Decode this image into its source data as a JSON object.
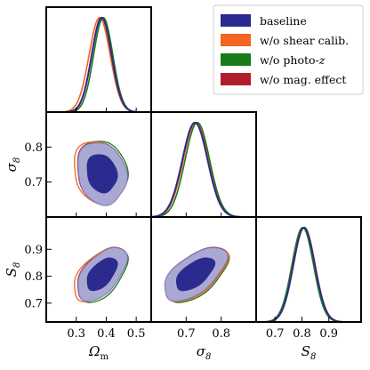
{
  "chart_data": {
    "type": "corner",
    "parameters": [
      {
        "key": "Om",
        "label": "Ωm",
        "range": [
          0.2,
          0.55
        ],
        "ticks": [
          0.3,
          0.4,
          0.5
        ],
        "tick_labels": [
          "0.3",
          "0.4",
          "0.5"
        ]
      },
      {
        "key": "sigma8",
        "label": "σ8",
        "range": [
          0.6,
          0.9
        ],
        "ticks": [
          0.7,
          0.8
        ],
        "tick_labels": [
          "0.7",
          "0.8"
        ]
      },
      {
        "key": "S8",
        "label": "S8",
        "range": [
          0.63,
          1.02
        ],
        "ticks": [
          0.7,
          0.8,
          0.9
        ],
        "tick_labels": [
          "0.7",
          "0.8",
          "0.9"
        ]
      }
    ],
    "series": [
      {
        "name": "baseline",
        "color": "#2b2b8f",
        "means": {
          "Om": 0.385,
          "sigma8": 0.725,
          "S8": 0.808
        },
        "sds": {
          "Om": 0.033,
          "sigma8": 0.036,
          "S8": 0.04
        },
        "corr": {
          "sigma8_Om": -0.15,
          "S8_Om": 0.55,
          "S8_sigma8": 0.6
        }
      },
      {
        "name": "w/o shear calib.",
        "color": "#f26522",
        "means": {
          "Om": 0.378,
          "sigma8": 0.728,
          "S8": 0.806
        },
        "sds": {
          "Om": 0.035,
          "sigma8": 0.036,
          "S8": 0.04
        },
        "corr": {
          "sigma8_Om": -0.15,
          "S8_Om": 0.55,
          "S8_sigma8": 0.6
        }
      },
      {
        "name": "w/o photo-z",
        "color": "#1a7a1a",
        "means": {
          "Om": 0.39,
          "sigma8": 0.732,
          "S8": 0.803
        },
        "sds": {
          "Om": 0.032,
          "sigma8": 0.035,
          "S8": 0.04
        },
        "corr": {
          "sigma8_Om": -0.15,
          "S8_Om": 0.55,
          "S8_sigma8": 0.6
        }
      },
      {
        "name": "w/o mag. effect",
        "color": "#b01e2e",
        "means": {
          "Om": 0.384,
          "sigma8": 0.726,
          "S8": 0.809
        },
        "sds": {
          "Om": 0.033,
          "sigma8": 0.036,
          "S8": 0.04
        },
        "corr": {
          "sigma8_Om": -0.15,
          "S8_Om": 0.55,
          "S8_sigma8": 0.6
        }
      }
    ],
    "contour_levels": [
      "68%",
      "95%"
    ],
    "fill_colors": {
      "inner": "#2b2b8f",
      "outer": "#a8a8d2"
    },
    "legend": {
      "placement": "top-right",
      "entries": [
        "baseline",
        "w/o shear calib.",
        "w/o photo-z",
        "w/o mag. effect"
      ]
    }
  }
}
